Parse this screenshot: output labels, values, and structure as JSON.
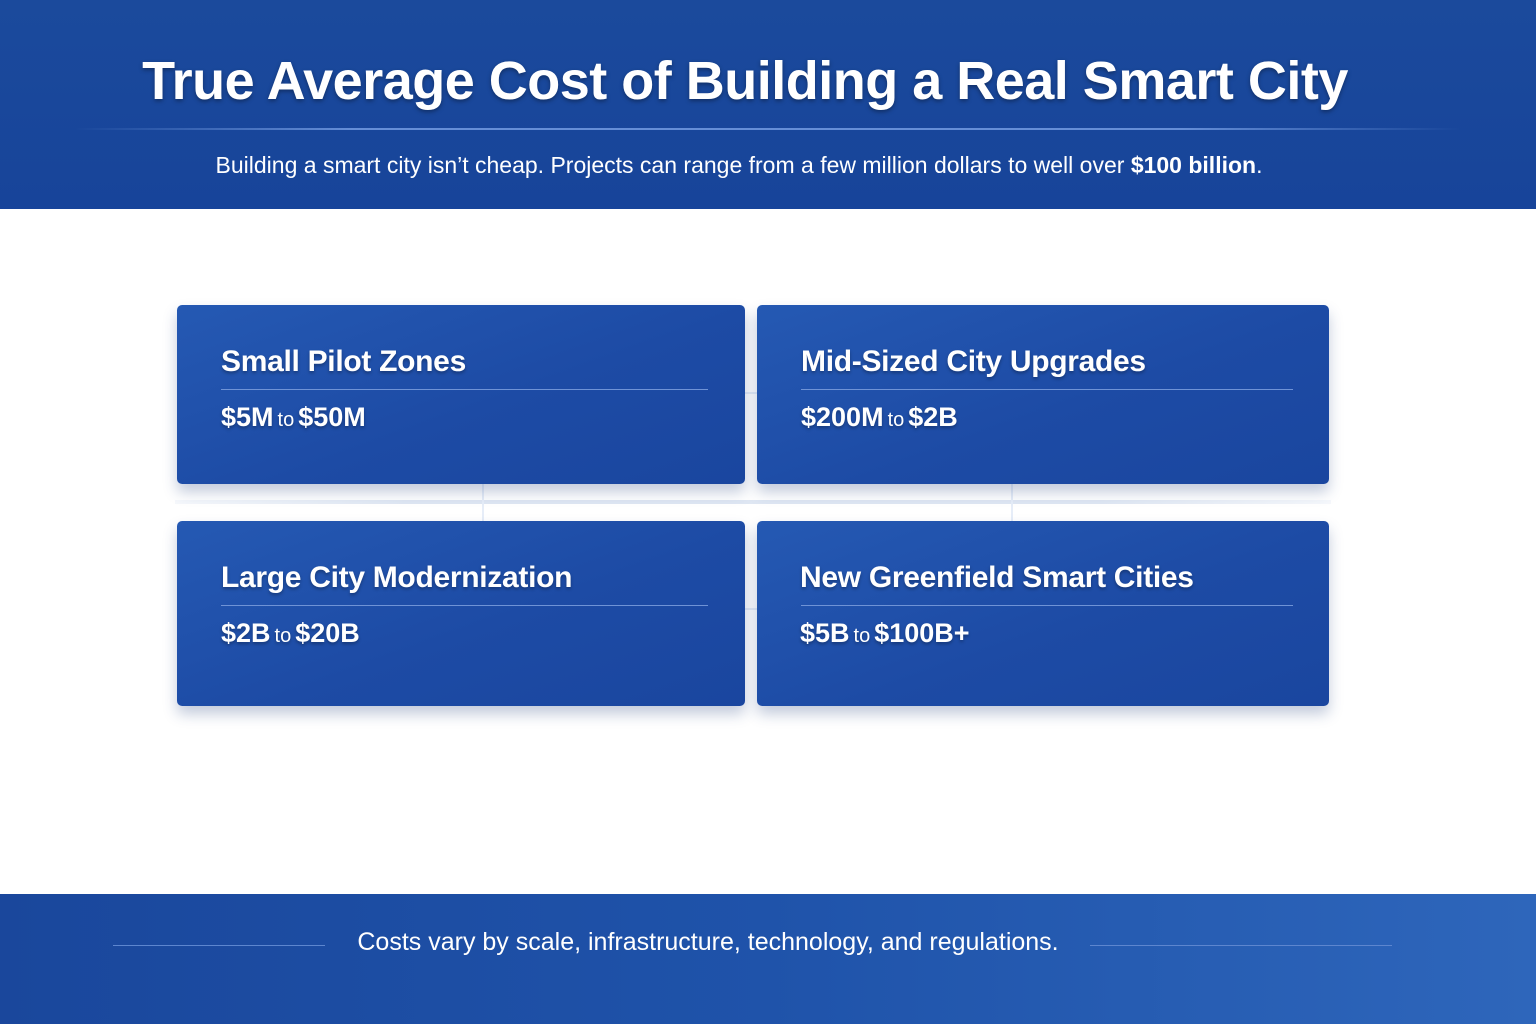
{
  "header": {
    "title": "True Average Cost of Building a Real Smart City",
    "subtitle_text": "Building a smart city isn’t cheap. Projects can range from a few million dollars to well over ",
    "subtitle_emphasis": "$100 billion",
    "subtitle_end": "."
  },
  "cards": [
    {
      "title": "Small Pilot Zones",
      "from": "$5M",
      "to": "to",
      "upper": "$50M"
    },
    {
      "title": "Mid-Sized City Upgrades",
      "from": "$200M",
      "to": "to",
      "upper": "$2B"
    },
    {
      "title": "Large City Modernization",
      "from": "$2B",
      "to": "to",
      "upper": "$20B"
    },
    {
      "title": "New Greenfield Smart Cities",
      "from": "$5B",
      "to": "to",
      "upper": "$100B+"
    }
  ],
  "footer": {
    "note": "Costs vary by scale, infrastructure, technology, and regulations."
  },
  "colors": {
    "primary_blue": "#1b4a9c",
    "card_blue": "#2559b3",
    "text": "#ffffff"
  }
}
